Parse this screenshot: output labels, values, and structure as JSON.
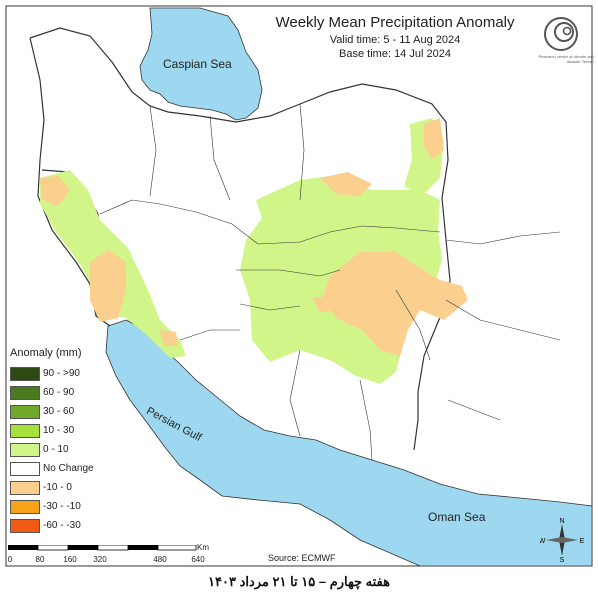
{
  "header": {
    "title": "Weekly Mean Precipitation Anomaly",
    "valid_time": "Valid time: 5 - 11 Aug 2024",
    "base_time": "Base time: 14 Jul 2024"
  },
  "logo": {
    "caption": "Research center of climate and disaster Tehran",
    "icon": "meteorology-organization-logo"
  },
  "water_labels": {
    "caspian": "Caspian Sea",
    "persian": "Persian Gulf",
    "oman": "Oman Sea"
  },
  "legend": {
    "title": "Anomaly (mm)",
    "items": [
      {
        "label": "90 - >90",
        "color": "#2d4a14"
      },
      {
        "label": "60 - 90",
        "color": "#4a7a1f"
      },
      {
        "label": "30 - 60",
        "color": "#6fa82a"
      },
      {
        "label": "10 - 30",
        "color": "#a6e03c"
      },
      {
        "label": "0 - 10",
        "color": "#d2f58a"
      },
      {
        "label": "No Change",
        "color": "#ffffff"
      },
      {
        "label": "-10 - 0",
        "color": "#fbcf8d"
      },
      {
        "label": "-30 - -10",
        "color": "#f8a21a"
      },
      {
        "label": "-60 - -30",
        "color": "#f05a14"
      }
    ]
  },
  "scale_bar": {
    "unit": "Km",
    "ticks": [
      "0",
      "80",
      "160",
      "320",
      "480",
      "640"
    ]
  },
  "source": "Source: ECMWF",
  "compass": {
    "n": "N",
    "s": "S",
    "e": "E",
    "w": "W"
  },
  "footer": "هفته چهارم – ۱۵ تا ۲۱ مرداد ۱۴۰۳",
  "colors": {
    "water": "#9dd8f0",
    "land": "#ffffff",
    "border": "#333333"
  }
}
